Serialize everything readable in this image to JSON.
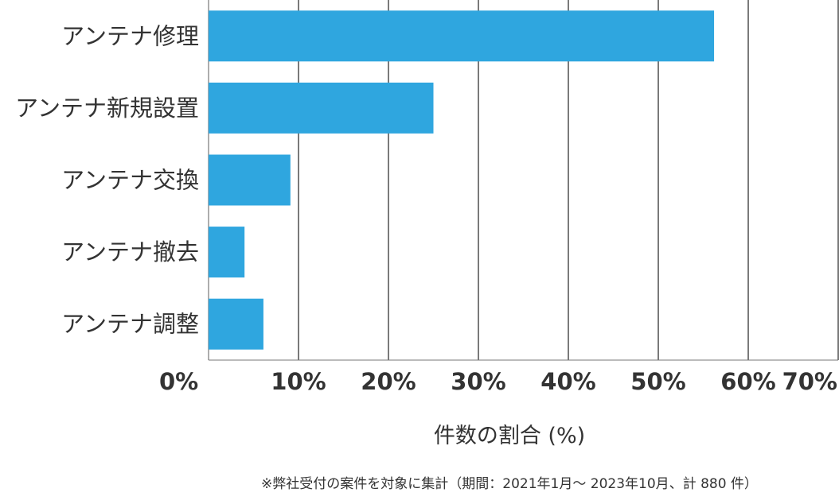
{
  "chart_data": {
    "type": "bar",
    "orientation": "horizontal",
    "categories": [
      "アンテナ修理",
      "アンテナ新規設置",
      "アンテナ交換",
      "アンテナ撤去",
      "アンテナ調整"
    ],
    "values": [
      56.2,
      25.0,
      9.1,
      4.0,
      6.1
    ],
    "xlim": [
      0,
      70
    ],
    "xticks": [
      0,
      10,
      20,
      30,
      40,
      50,
      60,
      70
    ],
    "xtick_labels": [
      "0%",
      "10%",
      "20%",
      "30%",
      "40%",
      "50%",
      "60%",
      "70%"
    ],
    "xlabel": "件数の割合 (%)",
    "grid": true,
    "bar_color": "#2fa6df",
    "note": "※弊社受付の案件を対象に集計（期間：2021年1月～ 2023年10月、計 880 件）"
  }
}
